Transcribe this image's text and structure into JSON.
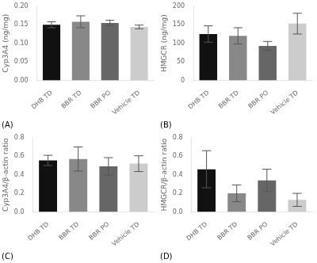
{
  "chart_data": [
    {
      "type": "bar",
      "annotation": "(A)",
      "y_label": "Cyp3A4 (ng/mg)",
      "categories": [
        "DHB TD",
        "BBR TD",
        "BBR PO",
        "Vehicle TD"
      ],
      "values": [
        0.15,
        0.158,
        0.155,
        0.144
      ],
      "errors": [
        0.008,
        0.016,
        0.007,
        0.005
      ],
      "colors": [
        "#111111",
        "#888888",
        "#666666",
        "#cccccc"
      ],
      "ylim": [
        0,
        0.2
      ],
      "yticks": [
        {
          "value": 0,
          "label": "0.00"
        },
        0.05,
        {
          "value": 0.1,
          "label": "0.10"
        },
        0.15,
        {
          "value": 0.2,
          "label": "0.20"
        }
      ],
      "grid": false
    },
    {
      "type": "bar",
      "annotation": "(B)",
      "y_label": "HMGCR (ng/mg)",
      "categories": [
        "DHB TD",
        "BBR TD",
        "BBR PO",
        "Vehicle TD"
      ],
      "values": [
        125,
        120,
        93,
        153
      ],
      "errors": [
        22,
        22,
        12,
        28
      ],
      "colors": [
        "#111111",
        "#888888",
        "#666666",
        "#cccccc"
      ],
      "ylim": [
        0,
        200
      ],
      "yticks": [
        0,
        50,
        100,
        150,
        200
      ],
      "grid": false
    },
    {
      "type": "bar",
      "annotation": "(C)",
      "y_label": "Cyp3A4/β-actin ratio",
      "categories": [
        "DHB TD",
        "BBR TD",
        "BBR PO",
        "Vehicle TD"
      ],
      "values": [
        0.555,
        0.57,
        0.49,
        0.52
      ],
      "errors": [
        0.055,
        0.13,
        0.095,
        0.085
      ],
      "colors": [
        "#111111",
        "#888888",
        "#666666",
        "#cccccc"
      ],
      "ylim": [
        0,
        0.8
      ],
      "yticks": [
        {
          "value": 0,
          "label": "0.0"
        },
        0.2,
        0.4,
        0.6,
        0.8
      ],
      "grid": false
    },
    {
      "type": "bar",
      "annotation": "(D)",
      "y_label": "HMGCR/β-actin ratio",
      "categories": [
        "DHB TD",
        "BBR TD",
        "BBR PO",
        "Vehicle TD"
      ],
      "values": [
        0.46,
        0.2,
        0.34,
        0.13
      ],
      "errors": [
        0.2,
        0.09,
        0.12,
        0.07
      ],
      "colors": [
        "#111111",
        "#888888",
        "#666666",
        "#cccccc"
      ],
      "ylim": [
        0,
        0.8
      ],
      "yticks": [
        {
          "value": 0,
          "label": "0.0"
        },
        0.2,
        0.4,
        0.6,
        0.8
      ],
      "grid": false
    }
  ]
}
